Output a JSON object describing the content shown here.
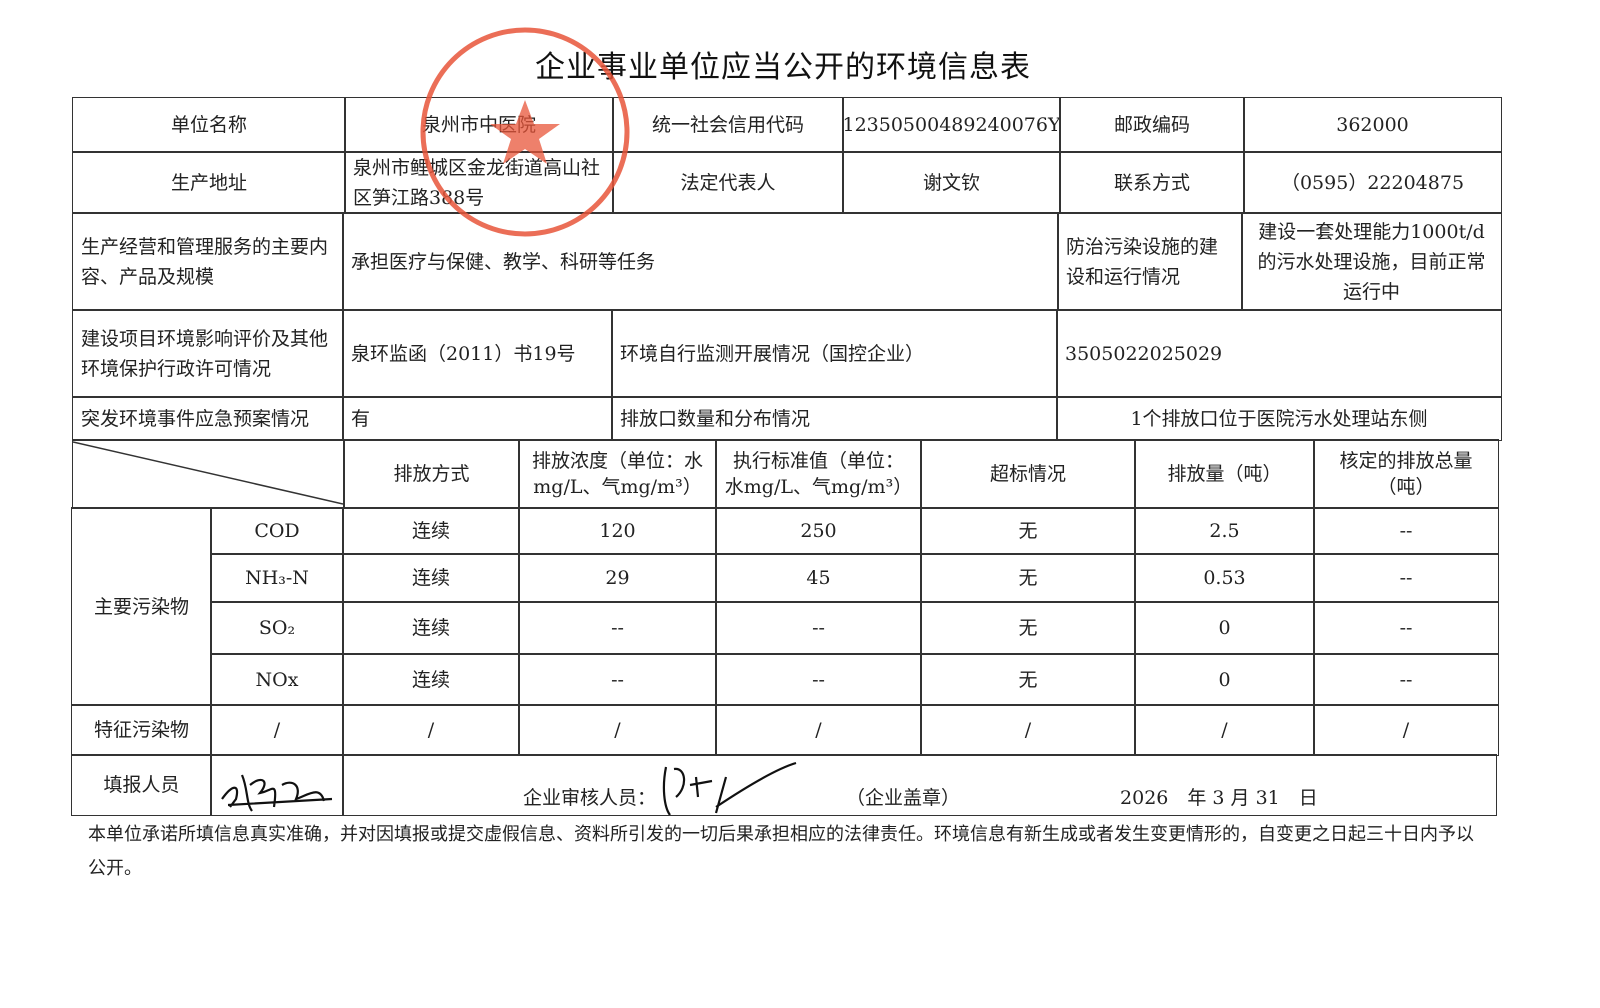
{
  "title": "企业事业单位应当公开的环境信息表",
  "info": {
    "unit_name_label": "单位名称",
    "unit_name": "泉州市中医院",
    "credit_code_label": "统一社会信用代码",
    "credit_code": "12350500489240076Y",
    "postcode_label": "邮政编码",
    "postcode": "362000",
    "address_label": "生产地址",
    "address": "泉州市鲤城区金龙街道高山社区笋江路388号",
    "legal_rep_label": "法定代表人",
    "legal_rep": "谢文钦",
    "contact_label": "联系方式",
    "contact": "（0595）22204875",
    "business_label": "生产经营和管理服务的主要内容、产品及规模",
    "business": "承担医疗与保健、教学、科研等任务",
    "facility_label": "防治污染设施的建设和运行情况",
    "facility": "建设一套处理能力1000t/d的污水处理设施，目前正常运行中",
    "eia_label": "建设项目环境影响评价及其他环境保护行政许可情况",
    "eia": "泉环监函（2011）书19号",
    "monitor_label": "环境自行监测开展情况（国控企业）",
    "monitor": "3505022025029",
    "emergency_label": "突发环境事件应急预案情况",
    "emergency": "有",
    "outlet_label": "排放口数量和分布情况",
    "outlet": "1个排放口位于医院污水处理站东侧"
  },
  "pollutants": {
    "headers": [
      "排放方式",
      "排放浓度（单位：水mg/L、气mg/m³）",
      "执行标准值（单位：水mg/L、气mg/m³）",
      "超标情况",
      "排放量（吨）",
      "核定的排放总量（吨）"
    ],
    "main_label": "主要污染物",
    "rows": [
      {
        "name": "COD",
        "method": "连续",
        "conc": "120",
        "standard": "250",
        "exceed": "无",
        "amount": "2.5",
        "total": "--"
      },
      {
        "name": "NH₃-N",
        "method": "连续",
        "conc": "29",
        "standard": "45",
        "exceed": "无",
        "amount": "0.53",
        "total": "--"
      },
      {
        "name": "SO₂",
        "method": "连续",
        "conc": "--",
        "standard": "--",
        "exceed": "无",
        "amount": "0",
        "total": "--"
      },
      {
        "name": "NOx",
        "method": "连续",
        "conc": "--",
        "standard": "--",
        "exceed": "无",
        "amount": "0",
        "total": "--"
      }
    ],
    "special_label": "特征污染物",
    "special": [
      "/",
      "/",
      "/",
      "/",
      "/",
      "/",
      "/"
    ]
  },
  "footer": {
    "filler_label": "填报人员",
    "reviewer_label": "企业审核人员：",
    "seal_label": "（企业盖章）",
    "date": "2026　年 3 月 31　日"
  },
  "note": "本单位承诺所填信息真实准确，并对因填报或提交虚假信息、资料所引发的一切后果承担相应的法律责任。环境信息有新生成或者发生变更情形的，自变更之日起三十日内予以公开。",
  "stamp": {
    "text": "泉州市中医院",
    "color": "#e8553a"
  }
}
